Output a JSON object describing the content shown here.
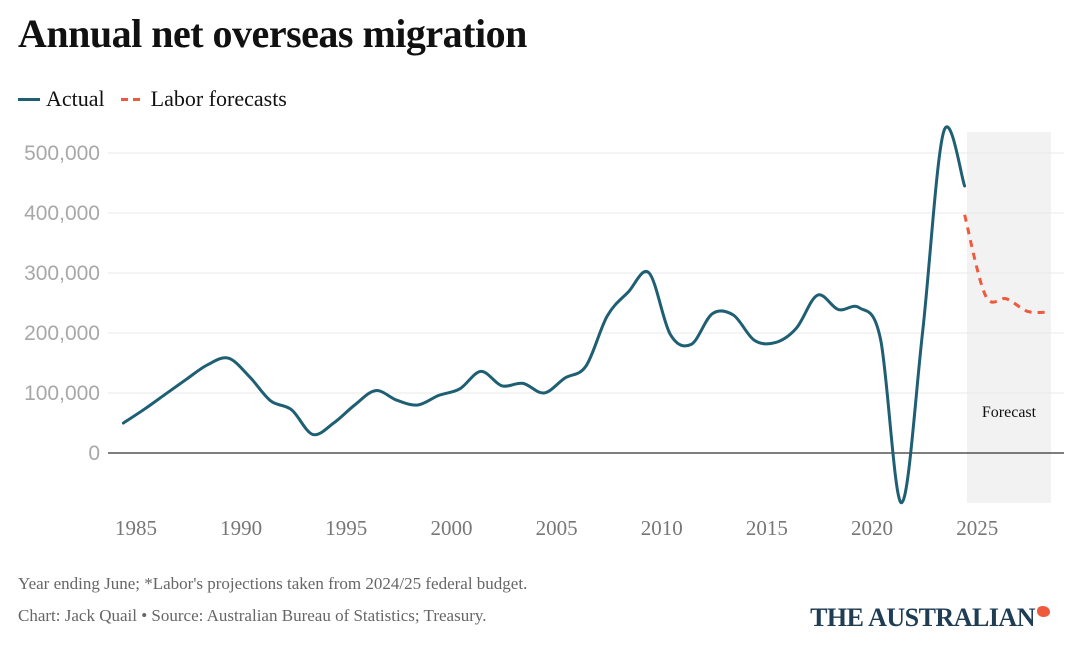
{
  "title": "Annual net overseas migration",
  "legend": {
    "actual": "Actual",
    "forecast": "Labor forecasts"
  },
  "colors": {
    "actual": "#1f5f73",
    "forecast": "#f05a3c",
    "forecast_band": "#f2f2f2",
    "grid": "#e8e8e8",
    "zero_line": "#333333",
    "logo": "#1f3e56"
  },
  "footer": {
    "note": "Year ending June; *Labor's projections taken from 2024/25 federal budget.",
    "credit": "Chart: Jack Quail • Source: Australian Bureau of Statistics; Treasury.",
    "logo_text": "THE AUSTRALIAN"
  },
  "chart_data": {
    "type": "line",
    "title": "Annual net overseas migration",
    "xlabel": "",
    "ylabel": "",
    "xlim": [
      1984,
      2029
    ],
    "ylim": [
      -90000,
      535000
    ],
    "grid": true,
    "legend_position": "top-left",
    "y_ticks": [
      0,
      100000,
      200000,
      300000,
      400000,
      500000
    ],
    "y_tick_labels": [
      "0",
      "100,000",
      "200,000",
      "300,000",
      "400,000",
      "500,000"
    ],
    "x_ticks": [
      1985,
      1990,
      1995,
      2000,
      2005,
      2010,
      2015,
      2020,
      2025
    ],
    "x_tick_labels": [
      "1985",
      "1990",
      "1995",
      "2000",
      "2005",
      "2010",
      "2015",
      "2020",
      "2025"
    ],
    "annotations": [
      {
        "text": "Forecast",
        "x_range": [
          2024.5,
          2028.5
        ]
      }
    ],
    "series": [
      {
        "name": "Actual",
        "style": "solid",
        "x": [
          1984,
          1985,
          1986,
          1987,
          1988,
          1989,
          1990,
          1991,
          1992,
          1993,
          1994,
          1995,
          1996,
          1997,
          1998,
          1999,
          2000,
          2001,
          2002,
          2003,
          2004,
          2005,
          2006,
          2007,
          2008,
          2009,
          2010,
          2011,
          2012,
          2013,
          2014,
          2015,
          2016,
          2017,
          2018,
          2019,
          2020,
          2021,
          2022,
          2023,
          2024
        ],
        "values": [
          50000,
          73000,
          98000,
          123000,
          147000,
          158000,
          127000,
          87000,
          72000,
          31000,
          50000,
          80000,
          104000,
          88000,
          80000,
          96000,
          107000,
          136000,
          112000,
          116000,
          100000,
          125000,
          145000,
          228000,
          268000,
          300000,
          198000,
          181000,
          232000,
          230000,
          188000,
          184000,
          208000,
          263000,
          239000,
          242000,
          190000,
          -83000,
          200000,
          535000,
          445000
        ]
      },
      {
        "name": "Labor forecasts",
        "style": "dashed",
        "x": [
          2024,
          2025,
          2026,
          2027,
          2028
        ],
        "values": [
          397000,
          262000,
          257000,
          236000,
          235000
        ]
      }
    ]
  }
}
